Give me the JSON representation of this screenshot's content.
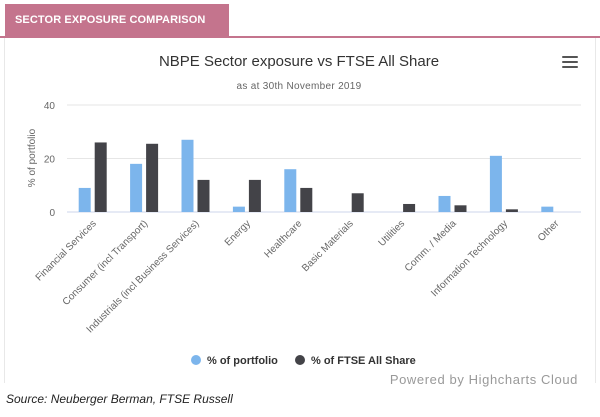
{
  "header": {
    "tab_label": "SECTOR EXPOSURE COMPARISON"
  },
  "chart_data": {
    "type": "bar",
    "title": "NBPE Sector exposure vs FTSE All Share",
    "subtitle": "as at 30th November 2019",
    "ylabel": "% of portfolio",
    "xlabel": "",
    "ylim": [
      0,
      40
    ],
    "yticks": [
      0,
      20,
      40
    ],
    "grid": true,
    "legend_position": "bottom",
    "categories": [
      "Financial Services",
      "Consumer (incl Transport)",
      "Industrials (incl Business Services)",
      "Energy",
      "Healthcare",
      "Basic Materials",
      "Utilities",
      "Comm. / Media",
      "Information Technology",
      "Other"
    ],
    "series": [
      {
        "name": "% of portfolio",
        "color": "#7cb5ec",
        "values": [
          9,
          18,
          27,
          2,
          16,
          0,
          0,
          6,
          21,
          2
        ]
      },
      {
        "name": "% of FTSE All Share",
        "color": "#434348",
        "values": [
          26,
          25.5,
          12,
          12,
          9,
          7,
          3,
          2.5,
          1,
          0
        ]
      }
    ]
  },
  "credits": "Powered by Highcharts Cloud",
  "source": "Source: Neuberger Berman, FTSE Russell"
}
